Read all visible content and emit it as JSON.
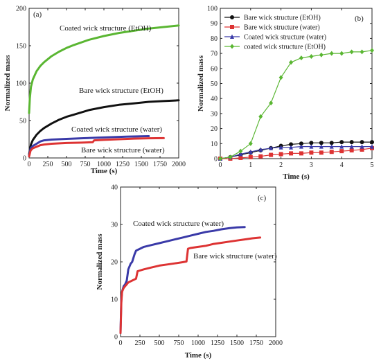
{
  "chart_data": [
    {
      "panel_label": "(a)",
      "type": "line",
      "xlabel": "Time (s)",
      "ylabel": "Normalized mass",
      "xlim": [
        0,
        2000
      ],
      "ylim": [
        0,
        200
      ],
      "xticks": [
        0,
        250,
        500,
        750,
        1000,
        1250,
        1500,
        1750,
        2000
      ],
      "yticks": [
        0,
        50,
        100,
        150,
        200
      ],
      "grid": false,
      "series": [
        {
          "name": "Coated wick structure (EtOH)",
          "color": "#5ab632",
          "x": [
            0,
            10,
            25,
            50,
            100,
            150,
            200,
            300,
            400,
            500,
            600,
            800,
            1000,
            1200,
            1400,
            1600,
            1800,
            2000
          ],
          "y": [
            60,
            80,
            95,
            105,
            116,
            123,
            128,
            136,
            142,
            147,
            151,
            158,
            163,
            167,
            170,
            173,
            175,
            177
          ]
        },
        {
          "name": "Bare wick structure (EtOH)",
          "color": "#111111",
          "x": [
            0,
            25,
            50,
            100,
            150,
            200,
            300,
            400,
            500,
            600,
            800,
            1000,
            1200,
            1400,
            1600,
            1800,
            2000
          ],
          "y": [
            5,
            18,
            24,
            31,
            36,
            40,
            46,
            51,
            55,
            58,
            64,
            68,
            71,
            73,
            75,
            76,
            77
          ]
        },
        {
          "name": "Coated wick structure (water)",
          "color": "#3a3aa8",
          "x": [
            0,
            20,
            50,
            100,
            150,
            200,
            300,
            500,
            700,
            900,
            1100,
            1300,
            1500,
            1600
          ],
          "y": [
            3,
            13,
            16,
            19,
            22,
            23.5,
            24.5,
            25.5,
            26.3,
            27,
            27.8,
            28.5,
            29,
            29.2
          ]
        },
        {
          "name": "Bare wick structure (water)",
          "color": "#dd3333",
          "x": [
            0,
            20,
            50,
            100,
            150,
            200,
            300,
            500,
            700,
            850,
            870,
            1000,
            1200,
            1400,
            1600,
            1800
          ],
          "y": [
            2,
            10,
            13,
            15,
            17,
            18,
            19,
            20,
            20.5,
            21,
            23.5,
            24.2,
            25,
            25.8,
            26.3,
            26.5
          ]
        }
      ],
      "annotations": [
        "Coated wick structure (EtOH)",
        "Bare wick structure (EtOH)",
        "Coated wick structure (water)",
        "Bare wick structure (water)"
      ]
    },
    {
      "panel_label": "(b)",
      "type": "line",
      "xlabel": "Time (s)",
      "ylabel": "Normalized mass",
      "xlim": [
        0,
        5
      ],
      "ylim": [
        0,
        100
      ],
      "xticks": [
        0,
        1,
        2,
        3,
        4,
        5
      ],
      "yticks": [
        0,
        10,
        20,
        30,
        40,
        50,
        60,
        70,
        80,
        90,
        100
      ],
      "grid": false,
      "legend": "top-left",
      "series": [
        {
          "name": "Bare wick structure (EtOH)",
          "color": "#111111",
          "marker": "circle",
          "x": [
            0,
            0.33,
            0.67,
            1.0,
            1.33,
            1.67,
            2.0,
            2.33,
            2.67,
            3.0,
            3.33,
            3.67,
            4.0,
            4.33,
            4.67,
            5.0
          ],
          "y": [
            0,
            1,
            2.5,
            4,
            5.5,
            7,
            8.5,
            9.5,
            10,
            10.5,
            10.5,
            10.5,
            11,
            11,
            11,
            11
          ]
        },
        {
          "name": "Bare wick structure (water)",
          "color": "#dd3333",
          "marker": "square",
          "x": [
            0,
            0.33,
            0.67,
            1.0,
            1.33,
            1.67,
            2.0,
            2.33,
            2.67,
            3.0,
            3.33,
            3.67,
            4.0,
            4.33,
            4.67,
            5.0
          ],
          "y": [
            0,
            0,
            0.5,
            1,
            1.5,
            2.5,
            3,
            3.5,
            3.5,
            4,
            4,
            4.5,
            5,
            5.5,
            6,
            7
          ]
        },
        {
          "name": "Coated wick structure (water)",
          "color": "#3a3aa8",
          "marker": "triangle",
          "x": [
            0,
            0.33,
            0.67,
            1.0,
            1.33,
            1.67,
            2.0,
            2.33,
            2.67,
            3.0,
            3.33,
            3.67,
            4.0,
            4.33,
            4.67,
            5.0
          ],
          "y": [
            0,
            1,
            3,
            4.5,
            6,
            7,
            7.5,
            7.5,
            8,
            8,
            8,
            8,
            8,
            8,
            8,
            8
          ]
        },
        {
          "name": "coated wick structure (EtOH)",
          "color": "#5ab632",
          "marker": "diamond",
          "x": [
            0,
            0.33,
            0.67,
            1.0,
            1.33,
            1.67,
            2.0,
            2.33,
            2.67,
            3.0,
            3.33,
            3.67,
            4.0,
            4.33,
            4.67,
            5.0
          ],
          "y": [
            0,
            1,
            5,
            10,
            28,
            37,
            54,
            64,
            67,
            68,
            69,
            70,
            70,
            71,
            71,
            72
          ]
        }
      ]
    },
    {
      "panel_label": "(c)",
      "type": "line",
      "xlabel": "Time (s)",
      "ylabel": "Normalized mass",
      "xlim": [
        0,
        2000
      ],
      "ylim": [
        0,
        40
      ],
      "xticks": [
        0,
        250,
        500,
        750,
        1000,
        1250,
        1500,
        1750,
        2000
      ],
      "yticks": [
        0,
        10,
        20,
        30,
        40
      ],
      "grid": false,
      "series": [
        {
          "name": "Coated wick structure (water)",
          "color": "#3a3aa8",
          "x": [
            0,
            5,
            10,
            20,
            40,
            60,
            80,
            100,
            130,
            150,
            180,
            200,
            250,
            300,
            400,
            500,
            600,
            700,
            800,
            900,
            1000,
            1100,
            1200,
            1300,
            1400,
            1500,
            1600
          ],
          "y": [
            1,
            6,
            10,
            12,
            13.5,
            14,
            15,
            18,
            19.5,
            20,
            22,
            23,
            23.5,
            24,
            24.5,
            25,
            25.5,
            26,
            26.5,
            27,
            27.5,
            28,
            28.3,
            28.7,
            29,
            29.2,
            29.3
          ]
        },
        {
          "name": "Bare wick structure (water)",
          "color": "#dd3333",
          "x": [
            0,
            5,
            10,
            20,
            40,
            60,
            80,
            100,
            150,
            200,
            220,
            300,
            400,
            500,
            600,
            700,
            800,
            850,
            870,
            900,
            1000,
            1100,
            1200,
            1300,
            1400,
            1500,
            1600,
            1700,
            1800
          ],
          "y": [
            1,
            5,
            9,
            12,
            13,
            13.5,
            14,
            14.5,
            15,
            15.5,
            17.5,
            18,
            18.5,
            19,
            19.3,
            19.6,
            19.9,
            20.1,
            23.5,
            23.7,
            24,
            24.3,
            24.8,
            25.1,
            25.4,
            25.7,
            26,
            26.3,
            26.5
          ]
        }
      ],
      "annotations": [
        "Coated wick structure (water)",
        "Bare wick structure (water)"
      ]
    }
  ]
}
